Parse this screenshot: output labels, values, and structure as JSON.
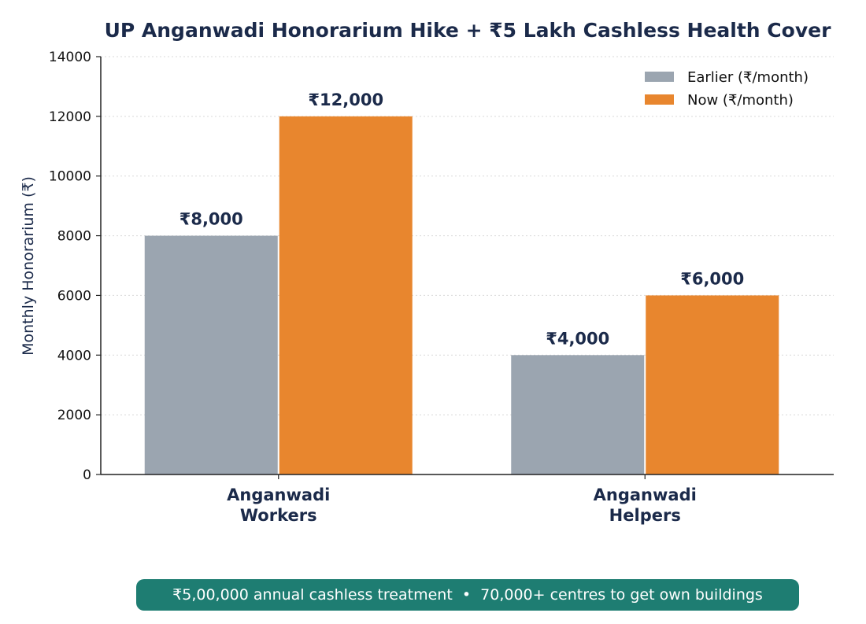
{
  "chart_data": {
    "type": "bar",
    "title": "UP Anganwadi Honorarium Hike + ₹5 Lakh Cashless Health Cover",
    "ylabel": "Monthly Honorarium (₹)",
    "xlabel": "",
    "ylim": [
      0,
      14000
    ],
    "yticks": [
      0,
      2000,
      4000,
      6000,
      8000,
      10000,
      12000,
      14000
    ],
    "grid": "horizontal, dotted",
    "legend_position": "top-right",
    "categories": [
      [
        "Anganwadi",
        "Workers"
      ],
      [
        "Anganwadi",
        "Helpers"
      ]
    ],
    "series": [
      {
        "name": "Earlier (₹/month)",
        "color": "#9ba5b0",
        "values": [
          8000,
          4000
        ],
        "labels": [
          "₹8,000",
          "₹4,000"
        ]
      },
      {
        "name": "Now (₹/month)",
        "color": "#e8862e",
        "values": [
          12000,
          6000
        ],
        "labels": [
          "₹12,000",
          "₹6,000"
        ]
      }
    ]
  },
  "footer": {
    "text": "₹5,00,000 annual cashless treatment  •  70,000+ centres to get own buildings",
    "color": "#1e7d72"
  }
}
